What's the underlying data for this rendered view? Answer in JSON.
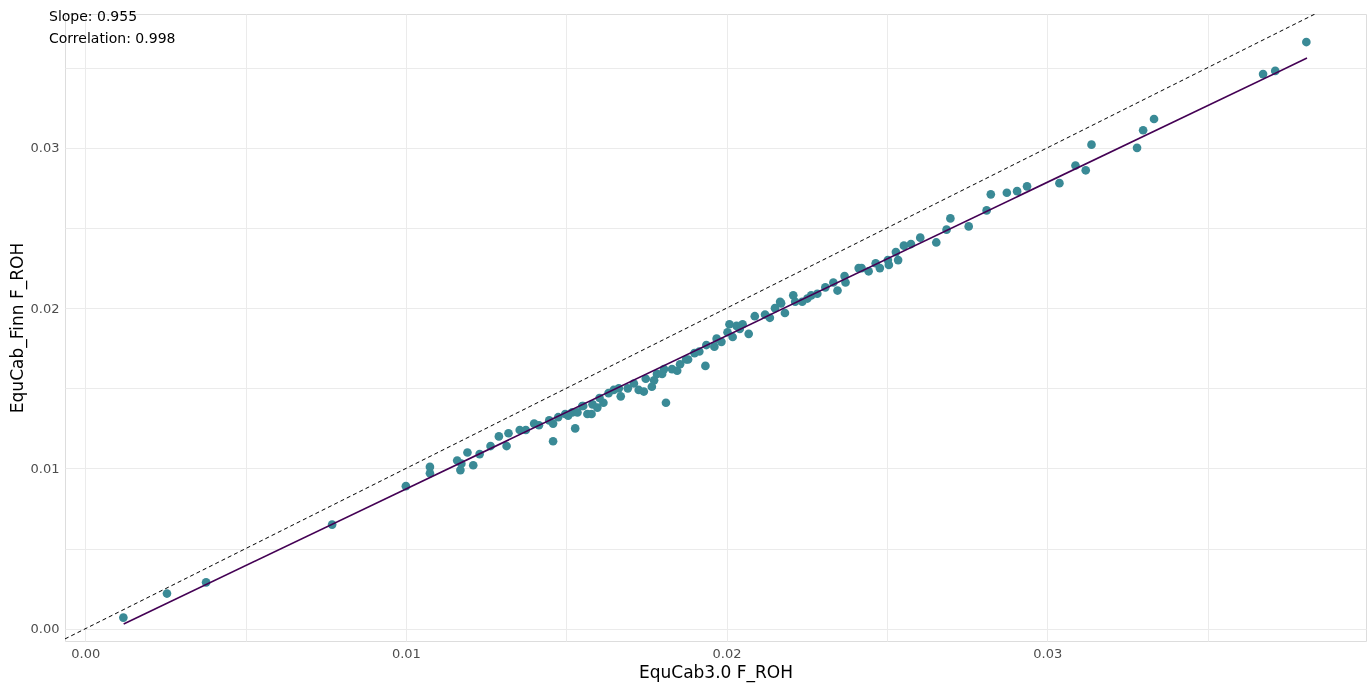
{
  "chart_data": {
    "type": "scatter",
    "xlabel": "EquCab3.0 F_ROH",
    "ylabel": "EquCab_Finn F_ROH",
    "annotations": [
      "Slope: 0.955",
      "Correlation: 0.998"
    ],
    "xlim": [
      -0.00063,
      0.03994
    ],
    "ylim": [
      -0.00076,
      0.03835
    ],
    "xticks": [
      {
        "value": 0,
        "label": "0.00"
      },
      {
        "value": 0.005,
        "label": null
      },
      {
        "value": 0.01,
        "label": "0.01"
      },
      {
        "value": 0.015,
        "label": null
      },
      {
        "value": 0.02,
        "label": "0.02"
      },
      {
        "value": 0.025,
        "label": null
      },
      {
        "value": 0.03,
        "label": "0.03"
      },
      {
        "value": 0.035,
        "label": null
      }
    ],
    "yticks": [
      {
        "value": 0,
        "label": "0.00"
      },
      {
        "value": 0.005,
        "label": null
      },
      {
        "value": 0.01,
        "label": "0.01"
      },
      {
        "value": 0.015,
        "label": null
      },
      {
        "value": 0.02,
        "label": "0.02"
      },
      {
        "value": 0.025,
        "label": null
      },
      {
        "value": 0.03,
        "label": "0.03"
      },
      {
        "value": 0.035,
        "label": null
      }
    ],
    "grid": true,
    "series": [
      {
        "type": "scatter",
        "color": "#3a8a96",
        "marker": "circle",
        "x": [
          0.00119,
          0.00255,
          0.00377,
          0.0077,
          0.01,
          0.01075,
          0.01075,
          0.0116,
          0.0117,
          0.01173,
          0.01192,
          0.0121,
          0.0123,
          0.01264,
          0.0129,
          0.01314,
          0.0132,
          0.01355,
          0.01374,
          0.014,
          0.01415,
          0.01447,
          0.01459,
          0.01475,
          0.01497,
          0.01519,
          0.01535,
          0.0155,
          0.01566,
          0.01582,
          0.01597,
          0.01616,
          0.01632,
          0.01648,
          0.0167,
          0.01692,
          0.01711,
          0.01726,
          0.01748,
          0.01767,
          0.01783,
          0.01805,
          0.0183,
          0.01855,
          0.01874,
          0.019,
          0.01934,
          0.01937,
          0.01969,
          0.01984,
          0.02003,
          0.02019,
          0.02031,
          0.0205,
          0.02069,
          0.0212,
          0.02151,
          0.02167,
          0.02182,
          0.02208,
          0.02236,
          0.02264,
          0.02308,
          0.02346,
          0.02368,
          0.02412,
          0.02443,
          0.02465,
          0.02506,
          0.02528,
          0.02553,
          0.02604,
          0.02654,
          0.02698,
          0.02755,
          0.02811,
          0.02824,
          0.02874,
          0.02906,
          0.02937,
          0.03038,
          0.03088,
          0.0312,
          0.03138,
          0.0328,
          0.03299,
          0.03333,
          0.03673,
          0.03711,
          0.03808,
          0.01459,
          0.01506,
          0.01528,
          0.01553,
          0.01579,
          0.01604,
          0.01664,
          0.01742,
          0.01774,
          0.01799,
          0.01811,
          0.01846,
          0.0188,
          0.01915,
          0.01962,
          0.02009,
          0.02041,
          0.02088,
          0.02135,
          0.0217,
          0.02214,
          0.02252,
          0.02283,
          0.02333,
          0.02371,
          0.02421,
          0.02478,
          0.02503,
          0.02535,
          0.02575,
          0.02686
        ],
        "values": [
          0.0007,
          0.0022,
          0.0029,
          0.0065,
          0.0089,
          0.0097,
          0.0101,
          0.0105,
          0.0099,
          0.0103,
          0.011,
          0.0102,
          0.0109,
          0.0114,
          0.012,
          0.0114,
          0.0122,
          0.0124,
          0.0124,
          0.0128,
          0.0127,
          0.013,
          0.0128,
          0.0132,
          0.0134,
          0.0135,
          0.0135,
          0.0139,
          0.0134,
          0.014,
          0.0138,
          0.0141,
          0.0147,
          0.0149,
          0.0145,
          0.015,
          0.0153,
          0.0149,
          0.0156,
          0.0151,
          0.0159,
          0.0162,
          0.0162,
          0.0165,
          0.0168,
          0.0172,
          0.0164,
          0.0177,
          0.0181,
          0.0179,
          0.0185,
          0.0182,
          0.0189,
          0.019,
          0.0184,
          0.0196,
          0.02,
          0.0204,
          0.0197,
          0.0208,
          0.0204,
          0.0208,
          0.0213,
          0.0211,
          0.022,
          0.0225,
          0.0223,
          0.0228,
          0.0227,
          0.0235,
          0.0239,
          0.0244,
          0.0241,
          0.0256,
          0.0251,
          0.0261,
          0.0271,
          0.0272,
          0.0273,
          0.0276,
          0.0278,
          0.0289,
          0.0286,
          0.0302,
          0.03,
          0.0311,
          0.0318,
          0.0346,
          0.0348,
          0.0366,
          0.0117,
          0.0133,
          0.0125,
          0.0139,
          0.0134,
          0.0144,
          0.015,
          0.0148,
          0.0155,
          0.0159,
          0.0141,
          0.0161,
          0.0168,
          0.0173,
          0.0176,
          0.019,
          0.0187,
          0.0195,
          0.0194,
          0.0203,
          0.0204,
          0.0206,
          0.0209,
          0.0216,
          0.0216,
          0.0225,
          0.0225,
          0.023,
          0.023,
          0.024,
          0.0249
        ]
      },
      {
        "type": "line",
        "color": "#440154",
        "line_style": "solid",
        "x": [
          0.0012,
          0.0381
        ],
        "values": [
          0.0003,
          0.0356
        ]
      },
      {
        "type": "line",
        "color": "#000000",
        "line_style": "dashed",
        "x": [
          -0.00063,
          0.03835
        ],
        "values": [
          -0.00063,
          0.03835
        ]
      }
    ]
  }
}
